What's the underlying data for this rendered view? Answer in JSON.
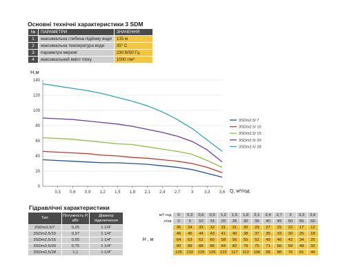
{
  "specs": {
    "title": "Основні технічні характеристики 3 SDM",
    "header": {
      "num": "№",
      "param": "ПАРАМЕТРИ",
      "value": "ЗНАЧЕННЯ"
    },
    "rows": [
      {
        "num": "1",
        "param": "максимальна глибина підйому води",
        "value": "135 м"
      },
      {
        "num": "2",
        "param": "максимальна температура води",
        "value": "35° С"
      },
      {
        "num": "3",
        "param": "параметри мережі",
        "value": "230 В/50 Гц"
      },
      {
        "num": "4",
        "param": "максимальний вміст піску",
        "value": "1000 г/м³"
      }
    ]
  },
  "chart_data": {
    "type": "line",
    "ylabel": "H,м",
    "xlabel": "Q, м³/год",
    "x_ticks": [
      "0,3",
      "0,6",
      "0,9",
      "1,2",
      "1,5",
      "1,8",
      "2,1",
      "2,4",
      "2,7",
      "3",
      "3,3",
      "3,6"
    ],
    "y_ticks": [
      "0",
      "20",
      "40",
      "60",
      "80",
      "100",
      "120",
      "140"
    ],
    "xlim": [
      0,
      3.6
    ],
    "ylim": [
      0,
      140
    ],
    "grid": true,
    "legend_position": "right",
    "x": [
      0,
      0.3,
      0.6,
      0.9,
      1.2,
      1.5,
      1.8,
      2.1,
      2.4,
      2.7,
      3,
      3.3,
      3.6
    ],
    "series": [
      {
        "name": "3SDm2.5/ 7",
        "color": "#1f4e9c",
        "values": [
          35,
          34,
          33,
          32,
          31,
          31,
          30,
          29,
          27,
          25,
          22,
          17,
          12
        ]
      },
      {
        "name": "3SDm2.5/ 10",
        "color": "#c0392b",
        "values": [
          46,
          45,
          44,
          43,
          41,
          40,
          38,
          37,
          35,
          33,
          30,
          25,
          18
        ]
      },
      {
        "name": "3SDm2.5/ 15",
        "color": "#8fbf3f",
        "values": [
          64,
          63,
          62,
          60,
          58,
          56,
          55,
          52,
          49,
          46,
          42,
          34,
          25
        ]
      },
      {
        "name": "3SDm2.5/ 20",
        "color": "#6a3d9a",
        "values": [
          90,
          89,
          88,
          86,
          84,
          82,
          79,
          75,
          71,
          66,
          59,
          48,
          32
        ]
      },
      {
        "name": "3SDm2.5/ 28",
        "color": "#2aa6b8",
        "values": [
          135,
          132,
          129,
          126,
          122,
          117,
          112,
          106,
          98,
          88,
          76,
          61,
          46
        ]
      }
    ]
  },
  "hyd": {
    "title": "Гідравлічні характеристики",
    "col_type": "Тип",
    "col_power": "Потужність Р, кВт",
    "col_diam": "Діаметр підключення",
    "row_q_label": "м³/ год",
    "row_l_label": "л/хв",
    "h_label": "Н , м",
    "q": [
      "0",
      "0,3",
      "0,6",
      "0,9",
      "1,2",
      "1,5",
      "1,8",
      "2,1",
      "2,4",
      "2,7",
      "3",
      "3,3",
      "3,6"
    ],
    "l": [
      "0",
      "5",
      "10",
      "15",
      "20",
      "25",
      "30",
      "35",
      "40",
      "45",
      "50",
      "55",
      "60"
    ],
    "rows": [
      {
        "type": "3SDm2,5/7",
        "power": "0,25",
        "diam": "1 1/4\"",
        "h": [
          "35",
          "34",
          "33",
          "32",
          "31",
          "31",
          "30",
          "29",
          "27",
          "25",
          "22",
          "17",
          "12"
        ]
      },
      {
        "type": "3SDm2,5/10",
        "power": "0,37",
        "diam": "1 1/4\"",
        "h": [
          "46",
          "45",
          "44",
          "43",
          "41",
          "40",
          "38",
          "37",
          "35",
          "33",
          "30",
          "25",
          "18"
        ]
      },
      {
        "type": "3SDm2,5/15",
        "power": "0,55",
        "diam": "1 1/4\"",
        "h": [
          "64",
          "63",
          "62",
          "60",
          "58",
          "56",
          "55",
          "52",
          "49",
          "46",
          "42",
          "34",
          "25"
        ]
      },
      {
        "type": "3SDm2,5/20",
        "power": "0,75",
        "diam": "1 1/4\"",
        "h": [
          "90",
          "89",
          "88",
          "86",
          "84",
          "82",
          "79",
          "75",
          "71",
          "66",
          "59",
          "48",
          "32"
        ]
      },
      {
        "type": "3SDm2,5/28",
        "power": "1,1",
        "diam": "1 1/4\"",
        "h": [
          "135",
          "132",
          "129",
          "126",
          "122",
          "117",
          "112",
          "106",
          "98",
          "88",
          "76",
          "61",
          "46"
        ]
      }
    ]
  }
}
